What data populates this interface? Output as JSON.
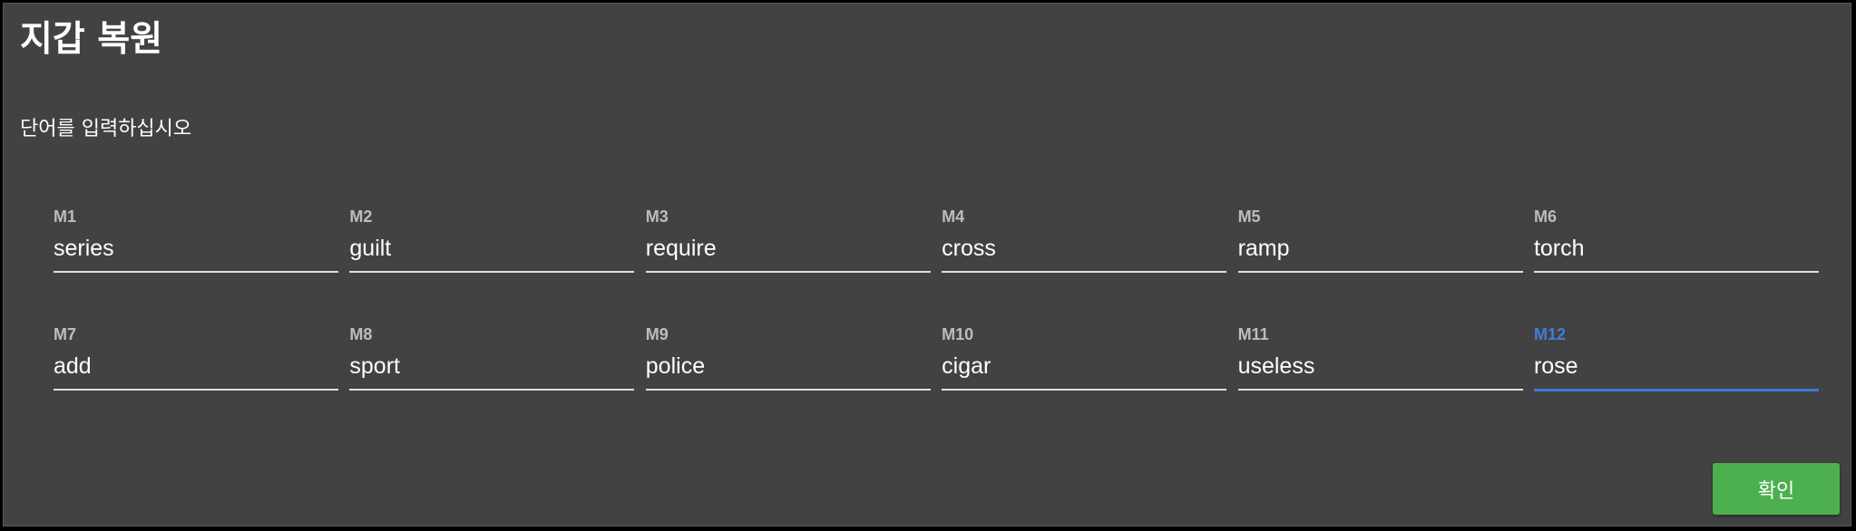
{
  "dialog": {
    "title": "지갑 복원",
    "instruction": "단어를 입력하십시오",
    "confirm_label": "확인"
  },
  "fields": [
    {
      "label": "M1",
      "value": "series"
    },
    {
      "label": "M2",
      "value": "guilt"
    },
    {
      "label": "M3",
      "value": "require"
    },
    {
      "label": "M4",
      "value": "cross"
    },
    {
      "label": "M5",
      "value": "ramp"
    },
    {
      "label": "M6",
      "value": "torch"
    },
    {
      "label": "M7",
      "value": "add"
    },
    {
      "label": "M8",
      "value": "sport"
    },
    {
      "label": "M9",
      "value": "police"
    },
    {
      "label": "M10",
      "value": "cigar"
    },
    {
      "label": "M11",
      "value": "useless"
    },
    {
      "label": "M12",
      "value": "rose"
    }
  ],
  "colors": {
    "background": "#424242",
    "accent_focus": "#3b7ad6",
    "confirm_button": "#4caf50"
  }
}
